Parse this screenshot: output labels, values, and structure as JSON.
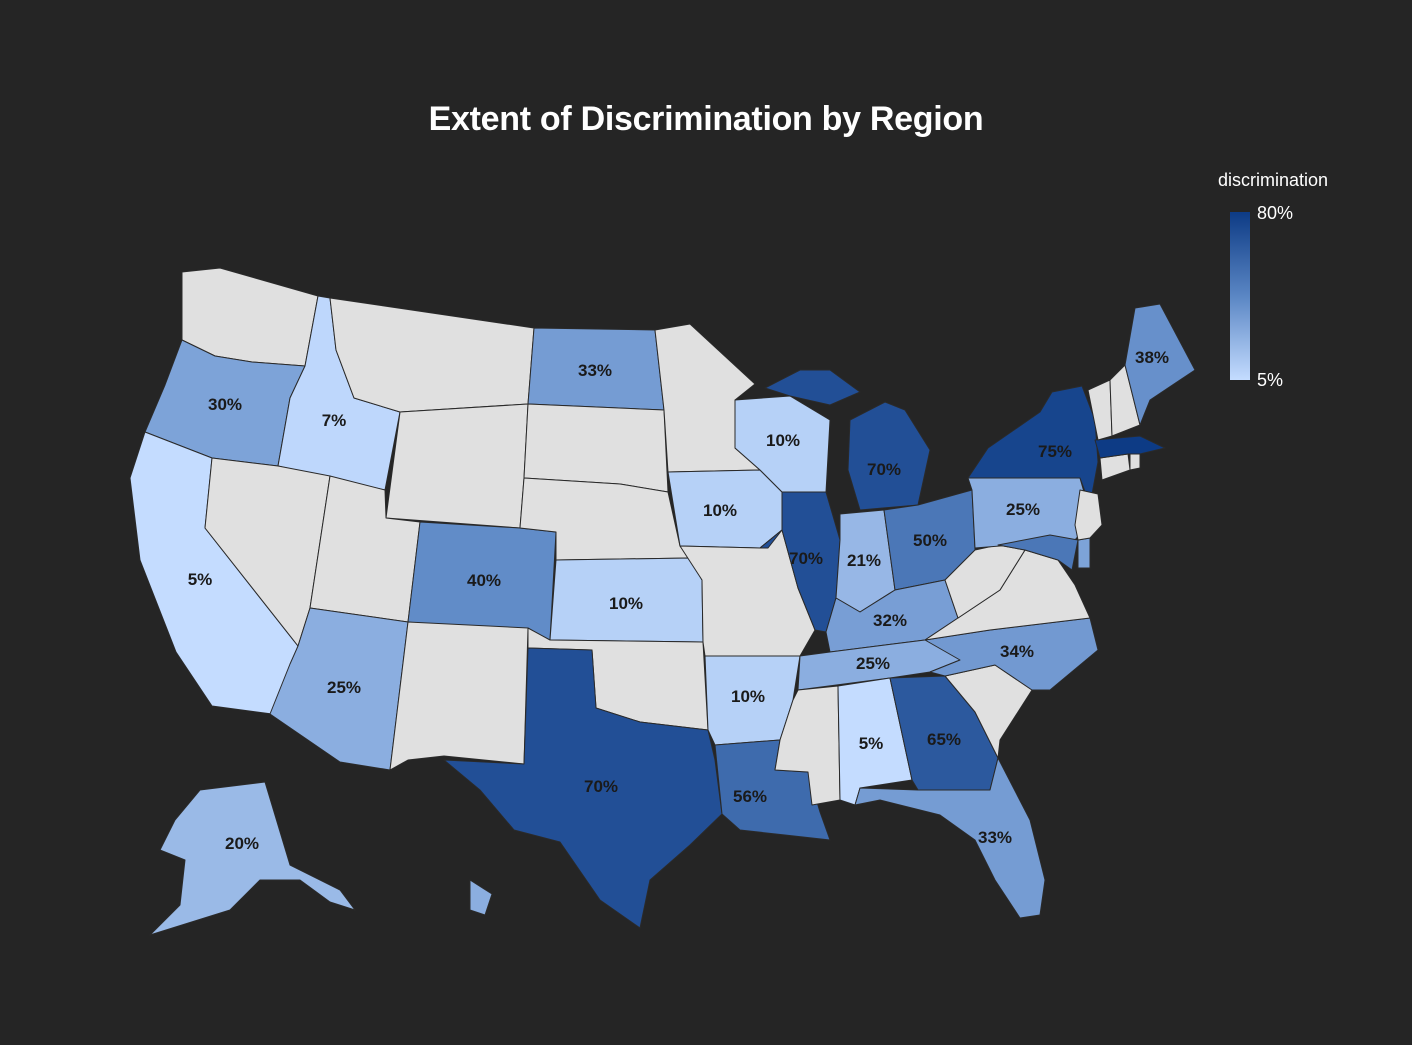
{
  "title": "Extent of Discrimination by Region",
  "legend": {
    "title": "discrimination",
    "max_label": "80%",
    "min_label": "5%",
    "color_high": "#0d3b85",
    "color_low": "#c4dcff"
  },
  "colors": {
    "background": "#252525",
    "no_data": "#e0e0e0"
  },
  "chart_data": {
    "type": "choropleth",
    "scale": {
      "min": 5,
      "max": 80,
      "unit": "%"
    },
    "regions": [
      {
        "name": "Washington",
        "value": null
      },
      {
        "name": "Oregon",
        "value": 30,
        "label": "30%"
      },
      {
        "name": "California",
        "value": 5,
        "label": "5%"
      },
      {
        "name": "Idaho",
        "value": 7,
        "label": "7%"
      },
      {
        "name": "Nevada",
        "value": null
      },
      {
        "name": "Montana",
        "value": null
      },
      {
        "name": "Wyoming",
        "value": null
      },
      {
        "name": "Utah",
        "value": null
      },
      {
        "name": "Arizona",
        "value": 25,
        "label": "25%"
      },
      {
        "name": "Colorado",
        "value": 40,
        "label": "40%"
      },
      {
        "name": "New Mexico",
        "value": null
      },
      {
        "name": "North Dakota",
        "value": 33,
        "label": "33%"
      },
      {
        "name": "South Dakota",
        "value": null
      },
      {
        "name": "Nebraska",
        "value": null
      },
      {
        "name": "Kansas",
        "value": 10,
        "label": "10%"
      },
      {
        "name": "Oklahoma",
        "value": null
      },
      {
        "name": "Texas",
        "value": 70,
        "label": "70%"
      },
      {
        "name": "Minnesota",
        "value": null
      },
      {
        "name": "Iowa",
        "value": 10,
        "label": "10%"
      },
      {
        "name": "Missouri",
        "value": null
      },
      {
        "name": "Arkansas",
        "value": 10,
        "label": "10%"
      },
      {
        "name": "Louisiana",
        "value": 56,
        "label": "56%"
      },
      {
        "name": "Wisconsin",
        "value": 10,
        "label": "10%"
      },
      {
        "name": "Illinois",
        "value": 70,
        "label": "70%"
      },
      {
        "name": "Michigan",
        "value": 70,
        "label": "70%"
      },
      {
        "name": "Indiana",
        "value": 21,
        "label": "21%"
      },
      {
        "name": "Ohio",
        "value": 50,
        "label": "50%"
      },
      {
        "name": "Kentucky",
        "value": 32,
        "label": "32%"
      },
      {
        "name": "Tennessee",
        "value": 25,
        "label": "25%"
      },
      {
        "name": "Mississippi",
        "value": null
      },
      {
        "name": "Alabama",
        "value": 5,
        "label": "5%"
      },
      {
        "name": "Georgia",
        "value": 65,
        "label": "65%"
      },
      {
        "name": "Florida",
        "value": 33,
        "label": "33%"
      },
      {
        "name": "South Carolina",
        "value": null
      },
      {
        "name": "North Carolina",
        "value": 34,
        "label": "34%"
      },
      {
        "name": "Virginia",
        "value": null
      },
      {
        "name": "West Virginia",
        "value": null
      },
      {
        "name": "Pennsylvania",
        "value": 25,
        "label": "25%"
      },
      {
        "name": "New York",
        "value": 75,
        "label": "75%"
      },
      {
        "name": "Maryland",
        "value": 50
      },
      {
        "name": "Delaware",
        "value": 30
      },
      {
        "name": "New Jersey",
        "value": null
      },
      {
        "name": "Connecticut",
        "value": null
      },
      {
        "name": "Rhode Island",
        "value": null
      },
      {
        "name": "Massachusetts",
        "value": 80
      },
      {
        "name": "Vermont",
        "value": null
      },
      {
        "name": "New Hampshire",
        "value": null
      },
      {
        "name": "Maine",
        "value": 38,
        "label": "38%"
      },
      {
        "name": "Alaska",
        "value": 20,
        "label": "20%"
      },
      {
        "name": "Hawaii",
        "value": 25
      }
    ]
  }
}
